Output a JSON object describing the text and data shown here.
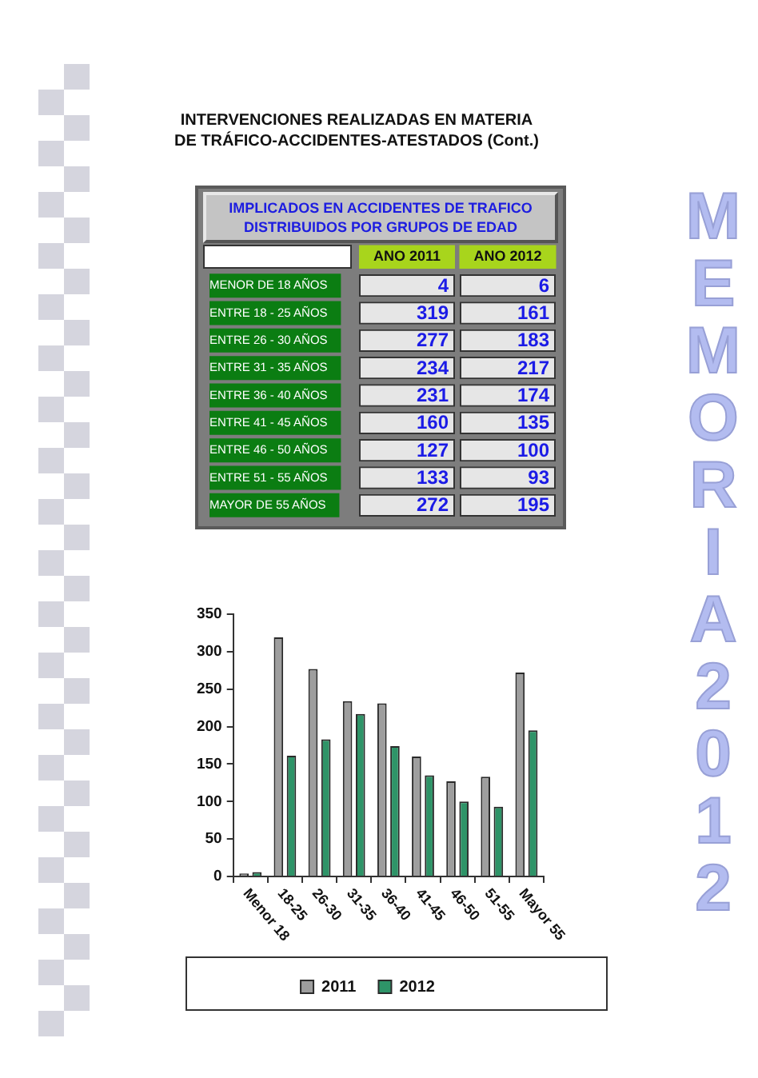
{
  "chart_data": [
    {
      "type": "heatmap",
      "title": "INTERVENCIONES REALIZADAS EN MATERIA DE TRÁFICO-ACCIDENTES-ATESTADOS (Cont.)",
      "subtitle": "IMPLICADOS EN ACCIDENTES DE TRAFICO DISTRIBUIDOS POR GRUPOS DE EDAD",
      "categories": [
        "ANO 2011",
        "ANO 2012"
      ],
      "y_categories": [
        "MENOR DE 18 AÑOS",
        "ENTRE 18 - 25 AÑOS",
        "ENTRE 26 - 30 AÑOS",
        "ENTRE 31 - 35 AÑOS",
        "ENTRE 36 - 40 AÑOS",
        "ENTRE 41 - 45 AÑOS",
        "ENTRE 46 - 50 AÑOS",
        "ENTRE 51 - 55 AÑOS",
        "MAYOR DE 55 AÑOS"
      ],
      "cells": [
        [
          4,
          6
        ],
        [
          319,
          161
        ],
        [
          277,
          183
        ],
        [
          234,
          217
        ],
        [
          231,
          174
        ],
        [
          160,
          135
        ],
        [
          127,
          100
        ],
        [
          133,
          93
        ],
        [
          272,
          195
        ]
      ],
      "data_labels": true,
      "annotations": [
        "MEMORIA2012"
      ]
    },
    {
      "type": "bar",
      "categories": [
        "Menor 18",
        "18-25",
        "26-30",
        "31-35",
        "36-40",
        "41-45",
        "46-50",
        "51-55",
        "Mayor 55"
      ],
      "series": [
        {
          "name": "2011",
          "color": "#9e9e9e",
          "values": [
            4,
            319,
            277,
            234,
            231,
            160,
            127,
            133,
            272
          ]
        },
        {
          "name": "2012",
          "color": "#2e9468",
          "values": [
            6,
            161,
            183,
            217,
            174,
            135,
            100,
            93,
            195
          ]
        }
      ],
      "ylim": [
        0,
        350
      ],
      "yticks": [
        0,
        50,
        100,
        150,
        200,
        250,
        300,
        350
      ],
      "grid": false,
      "legend": "bottom"
    }
  ]
}
